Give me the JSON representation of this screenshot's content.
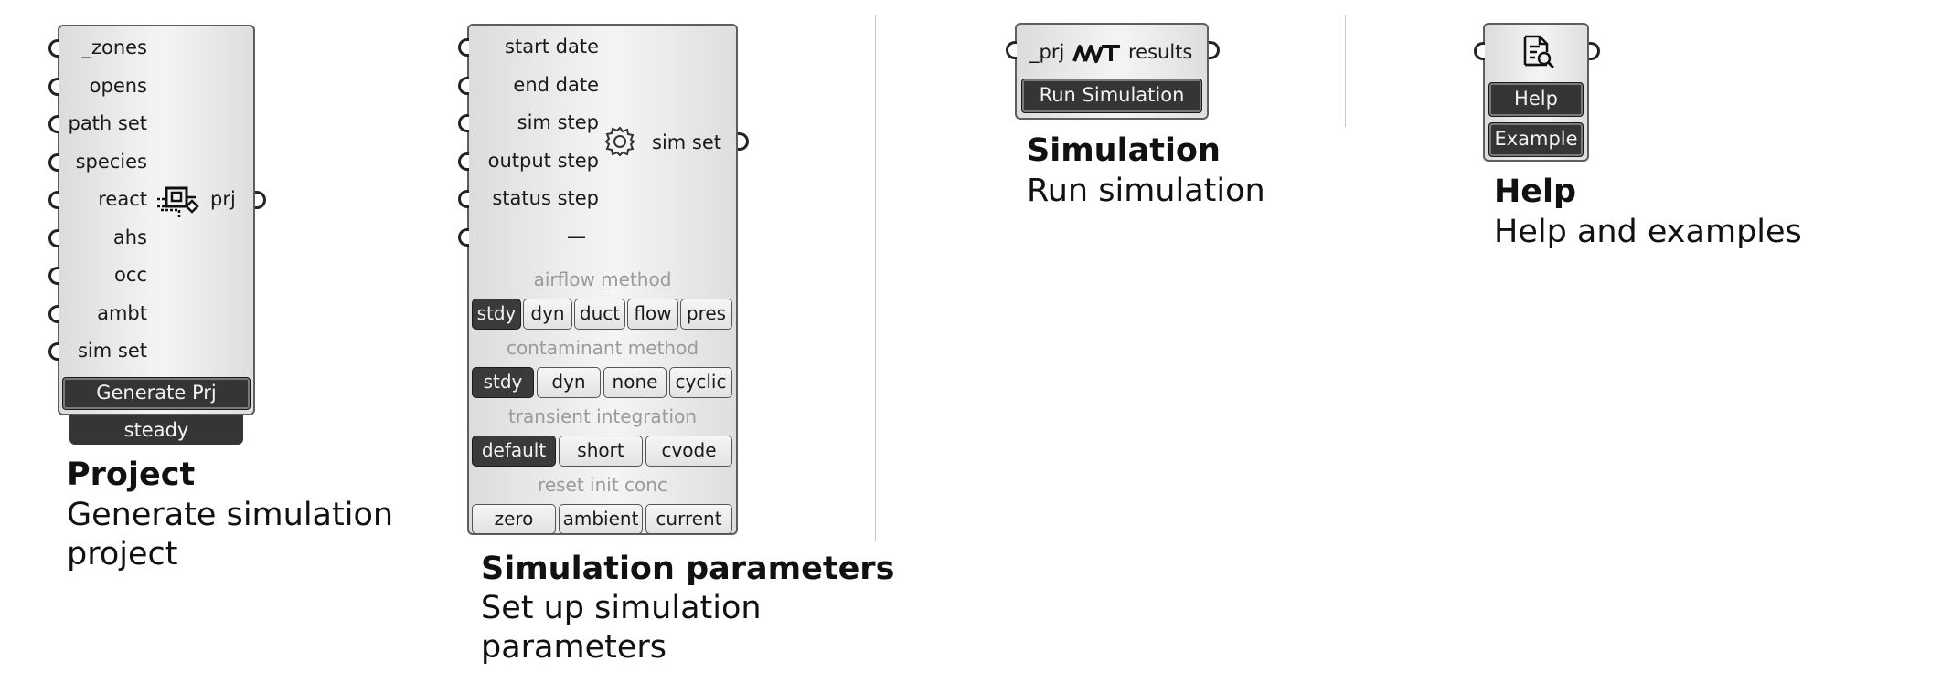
{
  "project": {
    "inputs": [
      "_zones",
      "opens",
      "path set",
      "species",
      "react",
      "ahs",
      "occ",
      "ambt",
      "sim set"
    ],
    "output": "prj",
    "icon": "network-project-icon",
    "button_label": "Generate Prj",
    "mode_label": "steady",
    "title": "Project",
    "description": "Generate simulation project"
  },
  "sim_params": {
    "inputs": [
      "start date",
      "end date",
      "sim step",
      "output step",
      "status step",
      "—"
    ],
    "output": "sim set",
    "icon": "gear-icon",
    "groups": [
      {
        "title": "airflow method",
        "options": [
          "stdy",
          "dyn",
          "duct",
          "flow",
          "pres"
        ],
        "selected": 0
      },
      {
        "title": "contaminant method",
        "options": [
          "stdy",
          "dyn",
          "none",
          "cyclic"
        ],
        "selected": 0
      },
      {
        "title": "transient integration",
        "options": [
          "default",
          "short",
          "cvode"
        ],
        "selected": 0
      },
      {
        "title": "reset init conc",
        "options": [
          "zero",
          "ambient",
          "current"
        ],
        "selected": -1
      }
    ],
    "title": "Simulation parameters",
    "description": "Set up simulation parameters"
  },
  "simulation": {
    "input": "_prj",
    "output": "results",
    "icon": "contam-logo-icon",
    "button_label": "Run Simulation",
    "title": "Simulation",
    "description": "Run simulation"
  },
  "help": {
    "icon": "document-search-icon",
    "help_label": "Help",
    "example_label": "Example",
    "title": "Help",
    "description": "Help and examples"
  }
}
